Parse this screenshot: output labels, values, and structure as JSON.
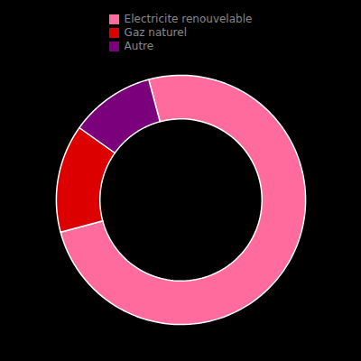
{
  "chart_data": {
    "type": "donut",
    "categories": [
      "Electricite renouvelable",
      "Gaz naturel",
      "Autre"
    ],
    "values": [
      75,
      14,
      11
    ],
    "colors": [
      "#FF6B9D",
      "#DD0000",
      "#7B007B"
    ],
    "legend": "top"
  }
}
